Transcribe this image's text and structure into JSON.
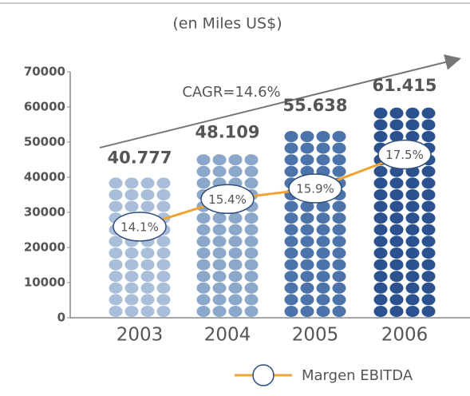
{
  "chart_data": {
    "type": "bar",
    "title": "(en Miles US$)",
    "annotation": "CAGR=14.6%",
    "categories": [
      "2003",
      "2004",
      "2005",
      "2006"
    ],
    "values": [
      40777,
      48109,
      55638,
      61415
    ],
    "value_labels": [
      "40.777",
      "48.109",
      "55.638",
      "61.415"
    ],
    "colors": [
      "#a9bfd9",
      "#8ba7c9",
      "#4d74aa",
      "#2b528f"
    ],
    "ylim": [
      0,
      70000
    ],
    "yticks": [
      0,
      10000,
      20000,
      30000,
      40000,
      50000,
      60000,
      70000
    ],
    "y2lim": [
      9.8,
      21.4
    ],
    "series": [
      {
        "name": "Margen EBITDA",
        "color": "#f0a330",
        "axis": "y2",
        "values": [
          14.1,
          15.4,
          15.9,
          17.5
        ],
        "value_labels": [
          "14.1%",
          "15.4%",
          "15.9%",
          "17.5%"
        ]
      }
    ]
  }
}
